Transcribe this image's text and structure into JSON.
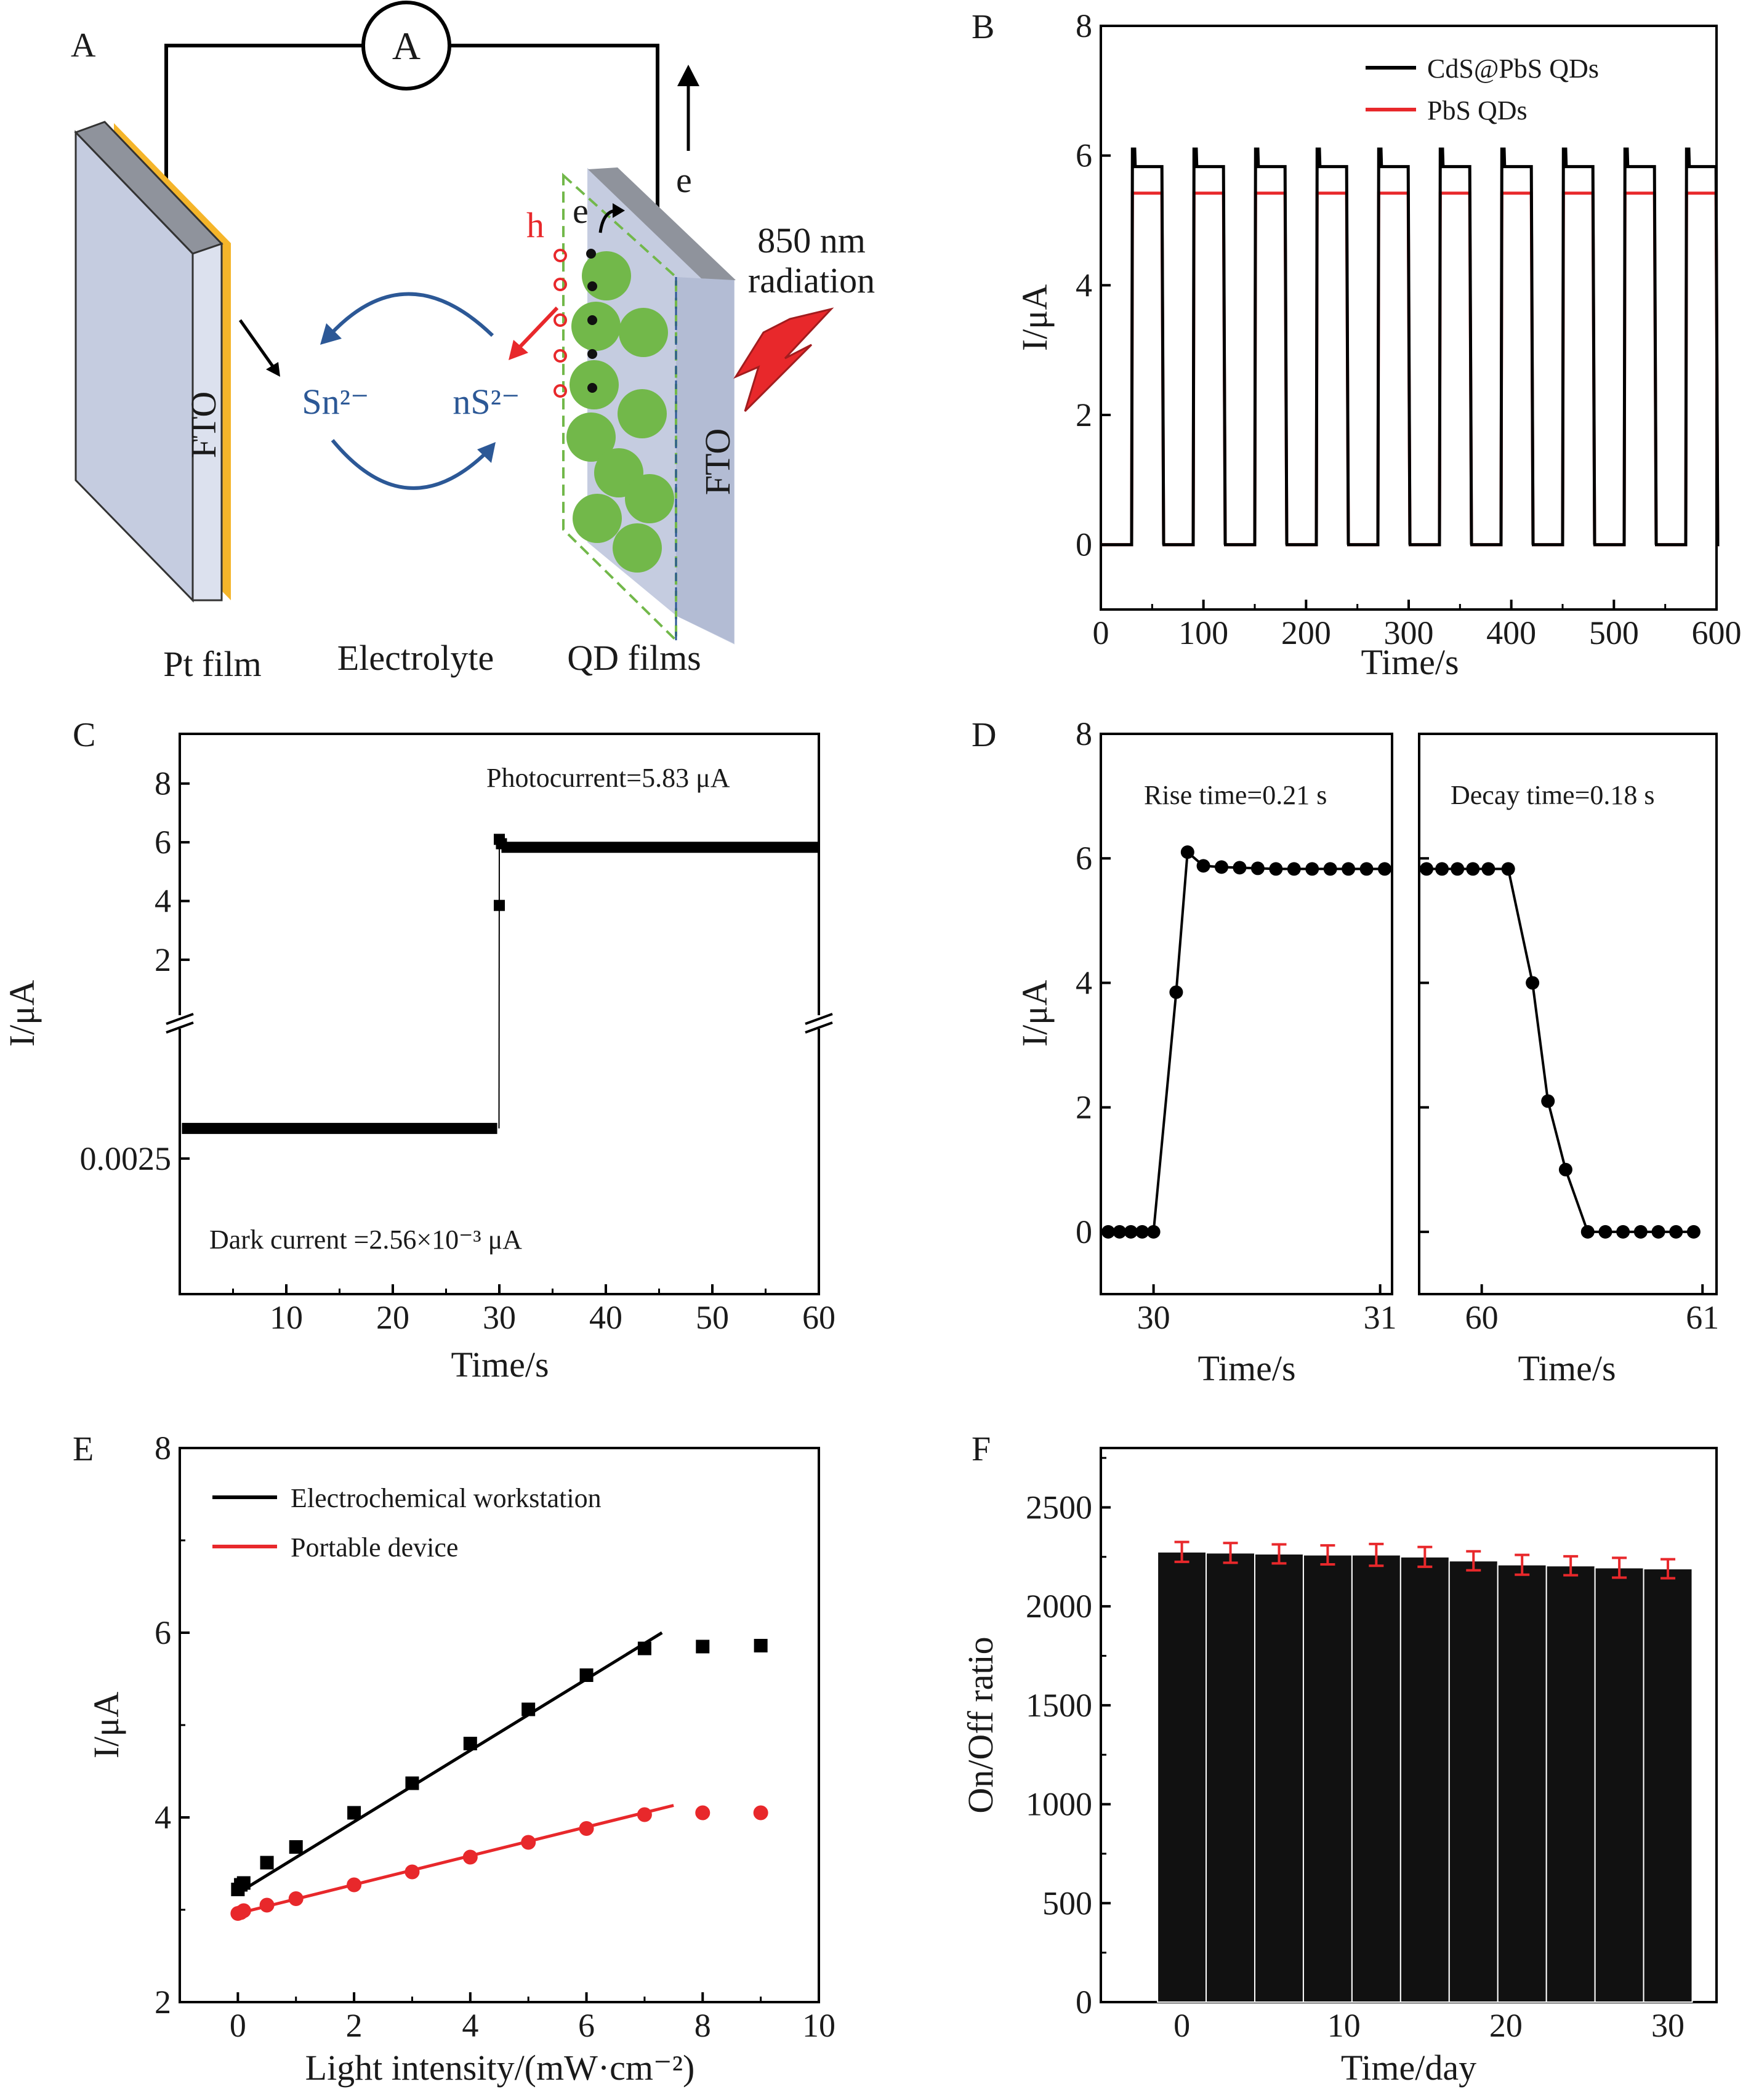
{
  "colors": {
    "black": "#000000",
    "red": "#e8282b",
    "errorbar": "#e8282b",
    "fto_panel": "#c5cce0",
    "gold": "#f5b52a",
    "qd_green": "#72b84a",
    "blue_text": "#2c5896",
    "h_red": "#e8282b"
  },
  "panels": {
    "A": {
      "label": "A",
      "ammeter": "A",
      "fto_left": "FTO",
      "fto_right": "FTO",
      "sn": "Sn²⁻",
      "ns": "nS²⁻",
      "h": "h",
      "e_inner": "e",
      "e_outer": "e",
      "radiation_line1": "850 nm",
      "radiation_line2": "radiation",
      "pt": "Pt film",
      "electrolyte": "Electrolyte",
      "qd": "QD films",
      "icons": [
        "ammeter-icon",
        "lightning-icon",
        "arrow-icon",
        "qd-sphere-icon"
      ]
    }
  },
  "chart_data": [
    {
      "panel": "B",
      "type": "line",
      "xlabel": "Time/s",
      "ylabel": "I/μA",
      "xlim": [
        0,
        600
      ],
      "ylim": [
        -1,
        8
      ],
      "xticks": [
        0,
        100,
        200,
        300,
        400,
        500,
        600
      ],
      "yticks": [
        0,
        2,
        4,
        6,
        8
      ],
      "legend": "top-right",
      "series": [
        {
          "name": "CdS@PbS QDs",
          "color": "#000000",
          "on_value": 5.83,
          "peak": 6.1,
          "off_value": 0,
          "period": 60,
          "on_start": 30,
          "on_end": 60,
          "cycles": 10
        },
        {
          "name": "PbS QDs",
          "color": "#e8282b",
          "on_value": 5.42,
          "peak": 5.42,
          "off_value": 0,
          "period": 60,
          "on_start": 30,
          "on_end": 60,
          "cycles": 10
        }
      ]
    },
    {
      "panel": "C",
      "type": "scatter",
      "xlabel": "Time/s",
      "ylabel": "I/μA",
      "xlim": [
        0,
        60
      ],
      "xticks": [
        10,
        20,
        30,
        40,
        50,
        60
      ],
      "yticks_upper": [
        2,
        4,
        6,
        8
      ],
      "yticks_lower": [
        0.0025
      ],
      "ytick_lower_labels": [
        "0.0025"
      ],
      "upper_ylim": [
        0.3,
        9
      ],
      "lower_ylim": [
        0.00223,
        0.00268
      ],
      "axis_break": true,
      "dark_value": 0.00256,
      "on_value": 5.83,
      "transition": [
        {
          "x": 30,
          "y": 3.85
        },
        {
          "x": 30,
          "y": 6.1
        },
        {
          "x": 30.2,
          "y": 5.95
        }
      ],
      "annotations": [
        "Photocurrent=5.83 μA",
        "Dark current =2.56×10⁻³ μA"
      ]
    },
    {
      "panel": "D",
      "type": "line",
      "ylabel": "I/μA",
      "ylim": [
        -1,
        8
      ],
      "yticks": [
        0,
        2,
        4,
        6,
        8
      ],
      "subplots": [
        {
          "xlabel": "Time/s",
          "xticks": [
            "30",
            "31"
          ],
          "xlim": [
            29.8,
            31.02
          ],
          "annotation": "Rise time=0.21 s",
          "x": [
            29.8,
            29.85,
            29.9,
            29.95,
            30.0,
            30.1,
            30.15,
            30.22,
            30.3,
            30.38,
            30.46,
            30.54,
            30.62,
            30.7,
            30.78,
            30.86,
            30.94,
            31.02
          ],
          "y": [
            0,
            0,
            0,
            0,
            0,
            3.85,
            6.1,
            5.88,
            5.86,
            5.85,
            5.84,
            5.83,
            5.83,
            5.83,
            5.83,
            5.83,
            5.83,
            5.83
          ]
        },
        {
          "xlabel": "Time/s",
          "xticks": [
            "60",
            "61"
          ],
          "xlim": [
            59.75,
            61.03
          ],
          "annotation": "Decay time=0.18 s",
          "x": [
            59.75,
            59.82,
            59.89,
            59.96,
            60.03,
            60.12,
            60.23,
            60.3,
            60.38,
            60.48,
            60.56,
            60.64,
            60.72,
            60.8,
            60.88,
            60.96
          ],
          "y": [
            5.83,
            5.83,
            5.83,
            5.83,
            5.83,
            5.83,
            4.0,
            2.1,
            1.0,
            0,
            0,
            0,
            0,
            0,
            0,
            0
          ]
        }
      ]
    },
    {
      "panel": "E",
      "type": "scatter",
      "xlabel": "Light intensity/(mW·cm⁻²)",
      "ylabel": "I/μA",
      "xlim": [
        -1,
        10
      ],
      "ylim": [
        2,
        8
      ],
      "xticks": [
        0,
        2,
        4,
        6,
        8,
        10
      ],
      "yticks": [
        2,
        4,
        6,
        8
      ],
      "legend": "top-left",
      "series": [
        {
          "name": "Electrochemical workstation",
          "color": "#000000",
          "marker": "square",
          "x": [
            0,
            0.05,
            0.1,
            0.5,
            1,
            2,
            3,
            4,
            5,
            6,
            7,
            8,
            9
          ],
          "y": [
            3.22,
            3.27,
            3.29,
            3.51,
            3.68,
            4.05,
            4.37,
            4.8,
            5.17,
            5.54,
            5.83,
            5.85,
            5.86
          ],
          "fit": {
            "x": [
              0,
              7.3
            ],
            "y": [
              3.18,
              6.0
            ]
          }
        },
        {
          "name": "Portable device",
          "color": "#e8282b",
          "marker": "circle",
          "x": [
            0,
            0.05,
            0.1,
            0.5,
            1,
            2,
            3,
            4,
            5,
            6,
            7,
            8,
            9
          ],
          "y": [
            2.96,
            2.97,
            2.99,
            3.05,
            3.12,
            3.27,
            3.41,
            3.57,
            3.73,
            3.88,
            4.03,
            4.05,
            4.05
          ],
          "fit": {
            "x": [
              0,
              7.5
            ],
            "y": [
              2.96,
              4.13
            ]
          }
        }
      ]
    },
    {
      "panel": "F",
      "type": "bar",
      "xlabel": "Time/day",
      "ylabel": "On/Off ratio",
      "xlim": [
        -5,
        33
      ],
      "ylim": [
        0,
        2800
      ],
      "xticks": [
        0,
        10,
        20,
        30
      ],
      "yticks": [
        0,
        500,
        1000,
        1500,
        2000,
        2500
      ],
      "x": [
        0,
        3,
        6,
        9,
        12,
        15,
        18,
        21,
        24,
        27,
        30
      ],
      "values": [
        2275,
        2270,
        2265,
        2260,
        2260,
        2250,
        2230,
        2210,
        2205,
        2195,
        2190
      ],
      "errors": [
        50,
        50,
        48,
        48,
        55,
        50,
        48,
        50,
        48,
        50,
        48
      ]
    }
  ]
}
